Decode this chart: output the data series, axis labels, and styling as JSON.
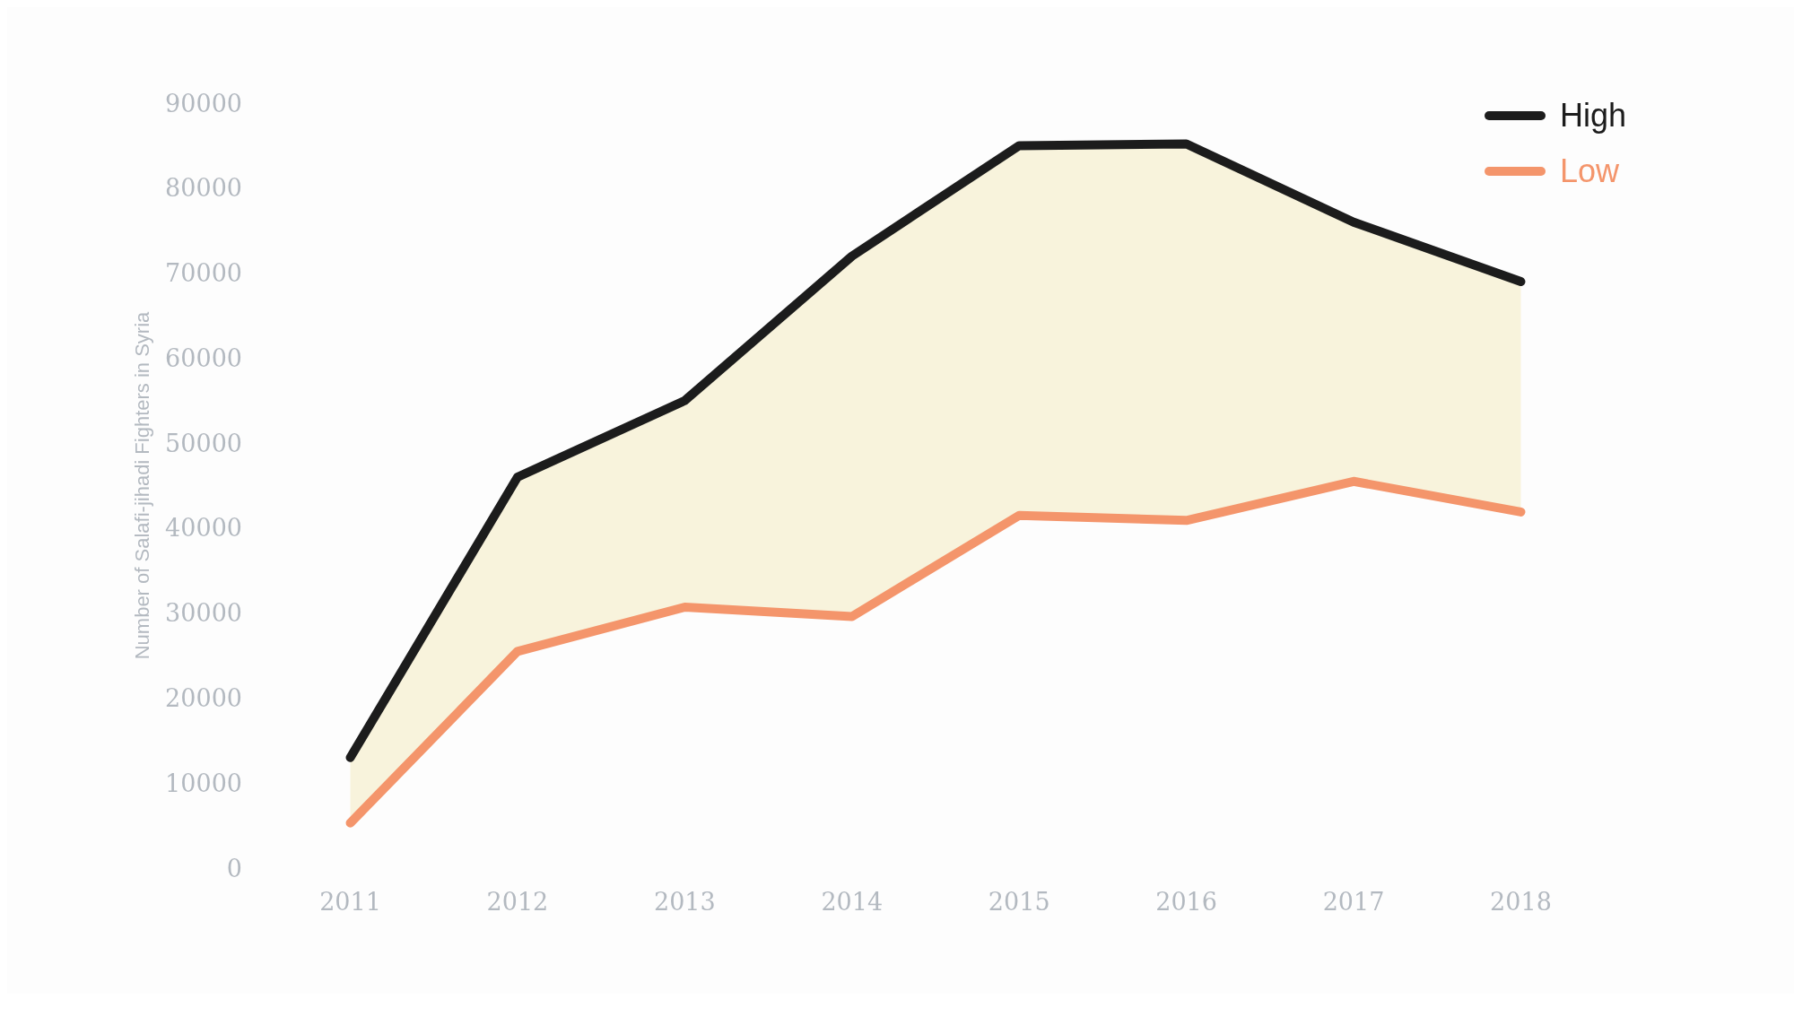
{
  "chart_data": {
    "type": "line",
    "ylabel": "Number of Salafi-jihadi Fighters in Syria",
    "categories": [
      "2011",
      "2012",
      "2013",
      "2014",
      "2015",
      "2016",
      "2017",
      "2018"
    ],
    "series": [
      {
        "name": "High",
        "color": "#1c1c1c",
        "values": [
          13000,
          46000,
          55000,
          72000,
          85000,
          85200,
          76000,
          69000
        ],
        "lower": [
          5300,
          25500,
          30700,
          29600,
          41500,
          40900,
          45500,
          41900
        ],
        "upper": [
          13000,
          46000,
          55000,
          72000,
          85000,
          85200,
          76000,
          69000
        ]
      },
      {
        "name": "Low",
        "color": "#f4956b",
        "values": [
          5300,
          25500,
          30700,
          29600,
          41500,
          40900,
          45500,
          41900
        ]
      }
    ],
    "ylim": [
      0,
      90000
    ],
    "yticks": [
      0,
      10000,
      20000,
      30000,
      40000,
      50000,
      60000,
      70000,
      80000,
      90000
    ],
    "grid": false,
    "legend": "top right",
    "marker": "none",
    "line_style": "solid"
  }
}
